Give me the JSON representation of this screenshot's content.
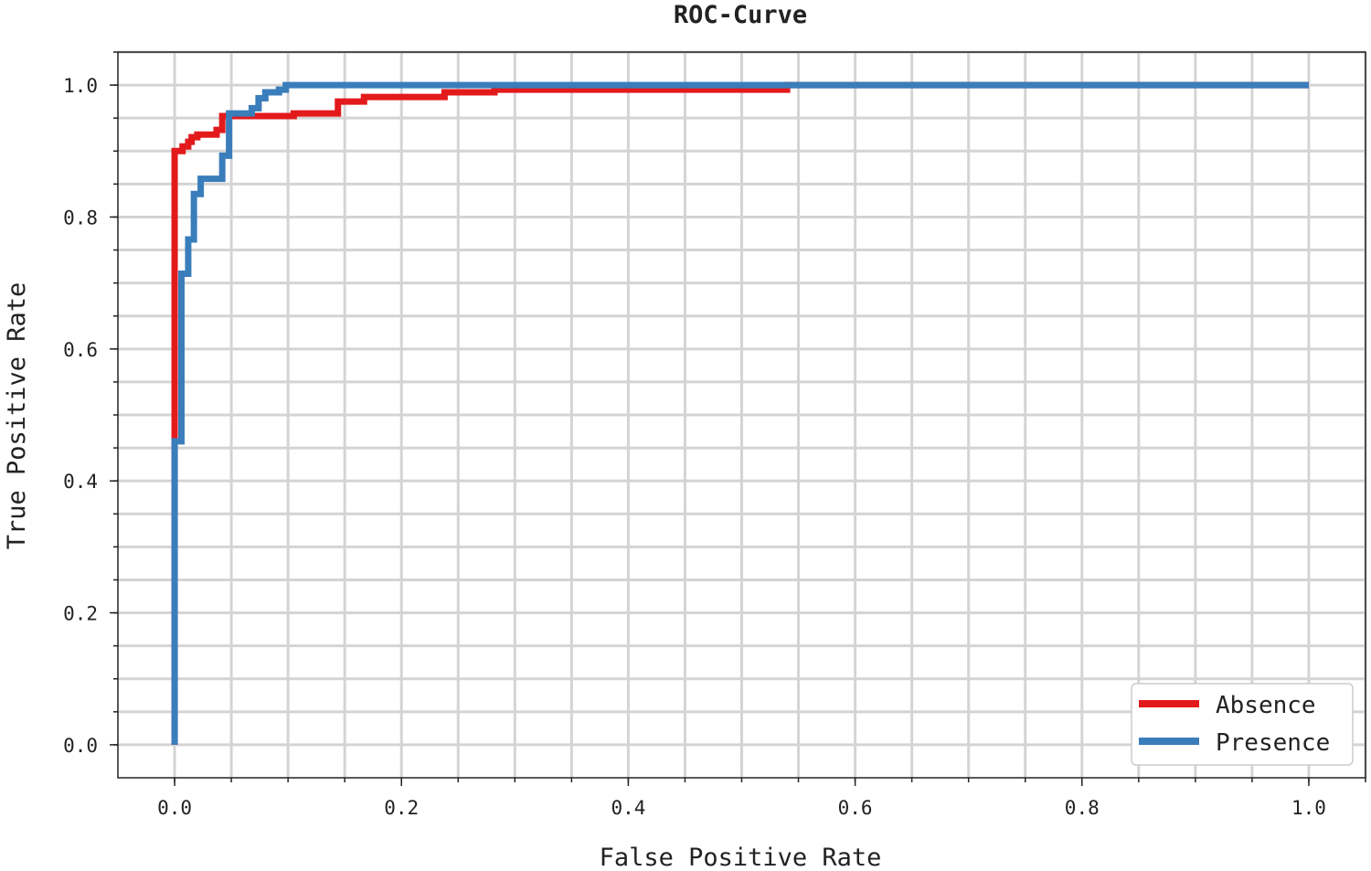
{
  "chart_data": {
    "type": "line",
    "title": "ROC-Curve",
    "xlabel": "False Positive Rate",
    "ylabel": "True Positive Rate",
    "xlim": [
      -0.05,
      1.05
    ],
    "ylim": [
      -0.05,
      1.05
    ],
    "xticks": [
      "0.0",
      "0.2",
      "0.4",
      "0.6",
      "0.8",
      "1.0"
    ],
    "yticks": [
      "0.0",
      "0.2",
      "0.4",
      "0.6",
      "0.8",
      "1.0"
    ],
    "grid": true,
    "minor_grid_step": 0.05,
    "legend_position": "bottom-right",
    "series": [
      {
        "name": "Absence",
        "color": "#e31a1c",
        "points": [
          [
            0,
            0
          ],
          [
            0,
            0.9
          ],
          [
            0.007,
            0.9
          ],
          [
            0.007,
            0.907
          ],
          [
            0.012,
            0.907
          ],
          [
            0.012,
            0.914
          ],
          [
            0.015,
            0.914
          ],
          [
            0.015,
            0.921
          ],
          [
            0.02,
            0.921
          ],
          [
            0.02,
            0.925
          ],
          [
            0.037,
            0.925
          ],
          [
            0.037,
            0.932
          ],
          [
            0.042,
            0.932
          ],
          [
            0.042,
            0.953
          ],
          [
            0.105,
            0.953
          ],
          [
            0.105,
            0.957
          ],
          [
            0.144,
            0.957
          ],
          [
            0.144,
            0.975
          ],
          [
            0.167,
            0.975
          ],
          [
            0.167,
            0.982
          ],
          [
            0.238,
            0.982
          ],
          [
            0.238,
            0.989
          ],
          [
            0.282,
            0.989
          ],
          [
            0.282,
            0.993
          ],
          [
            0.54,
            0.993
          ],
          [
            0.54,
            1
          ],
          [
            1,
            1
          ]
        ]
      },
      {
        "name": "Presence",
        "color": "#3a7dbb",
        "points": [
          [
            0,
            0
          ],
          [
            0,
            0.46
          ],
          [
            0.006,
            0.46
          ],
          [
            0.006,
            0.714
          ],
          [
            0.012,
            0.714
          ],
          [
            0.012,
            0.766
          ],
          [
            0.017,
            0.766
          ],
          [
            0.017,
            0.835
          ],
          [
            0.023,
            0.835
          ],
          [
            0.023,
            0.858
          ],
          [
            0.042,
            0.858
          ],
          [
            0.042,
            0.893
          ],
          [
            0.048,
            0.893
          ],
          [
            0.048,
            0.957
          ],
          [
            0.068,
            0.957
          ],
          [
            0.068,
            0.965
          ],
          [
            0.074,
            0.965
          ],
          [
            0.074,
            0.98
          ],
          [
            0.08,
            0.98
          ],
          [
            0.08,
            0.989
          ],
          [
            0.092,
            0.989
          ],
          [
            0.092,
            0.993
          ],
          [
            0.098,
            0.993
          ],
          [
            0.098,
            1
          ],
          [
            1,
            1
          ]
        ]
      }
    ]
  }
}
